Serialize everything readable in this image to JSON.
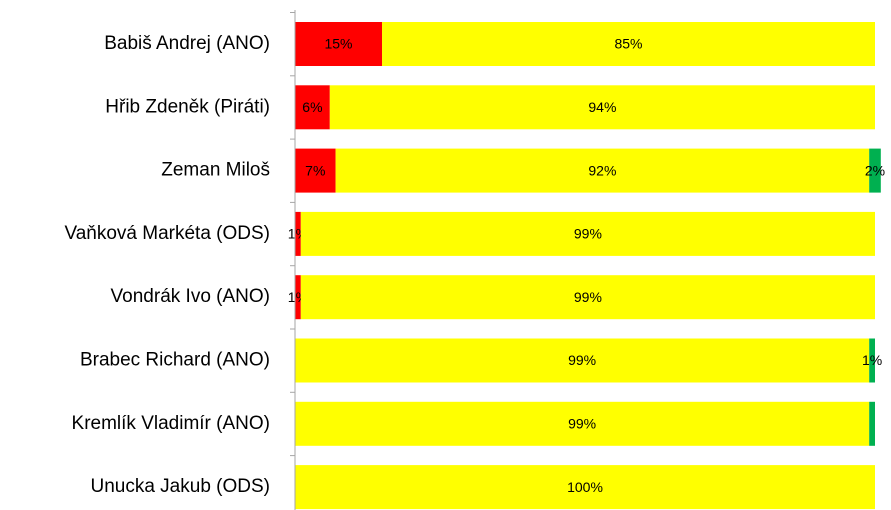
{
  "chart_data": {
    "type": "stacked-bar-horizontal",
    "categories": [
      "Babiš Andrej (ANO)",
      "Hřib Zdeněk (Piráti)",
      "Zeman Miloš",
      "Vaňková Markéta (ODS)",
      "Vondrák Ivo (ANO)",
      "Brabec Richard (ANO)",
      "Kremlík Vladimír (ANO)",
      "Unucka Jakub (ODS)"
    ],
    "series": [
      {
        "color": "#ff0000",
        "values": [
          15,
          6,
          7,
          1,
          1,
          0,
          0,
          0
        ],
        "value_labels": [
          "15%",
          "6%",
          "7%",
          "1%",
          "1%",
          null,
          null,
          null
        ]
      },
      {
        "color": "#ffff00",
        "values": [
          85,
          94,
          92,
          99,
          99,
          99,
          99,
          100
        ],
        "value_labels": [
          "85%",
          "94%",
          "92%",
          "99%",
          "99%",
          "99%",
          "99%",
          "100%"
        ]
      },
      {
        "color": "#00b050",
        "values": [
          0,
          0,
          2,
          0,
          0,
          1,
          1,
          0
        ],
        "value_labels": [
          null,
          null,
          "2%",
          null,
          null,
          "1%",
          null,
          null
        ]
      }
    ],
    "xlim": [
      0,
      100
    ]
  }
}
